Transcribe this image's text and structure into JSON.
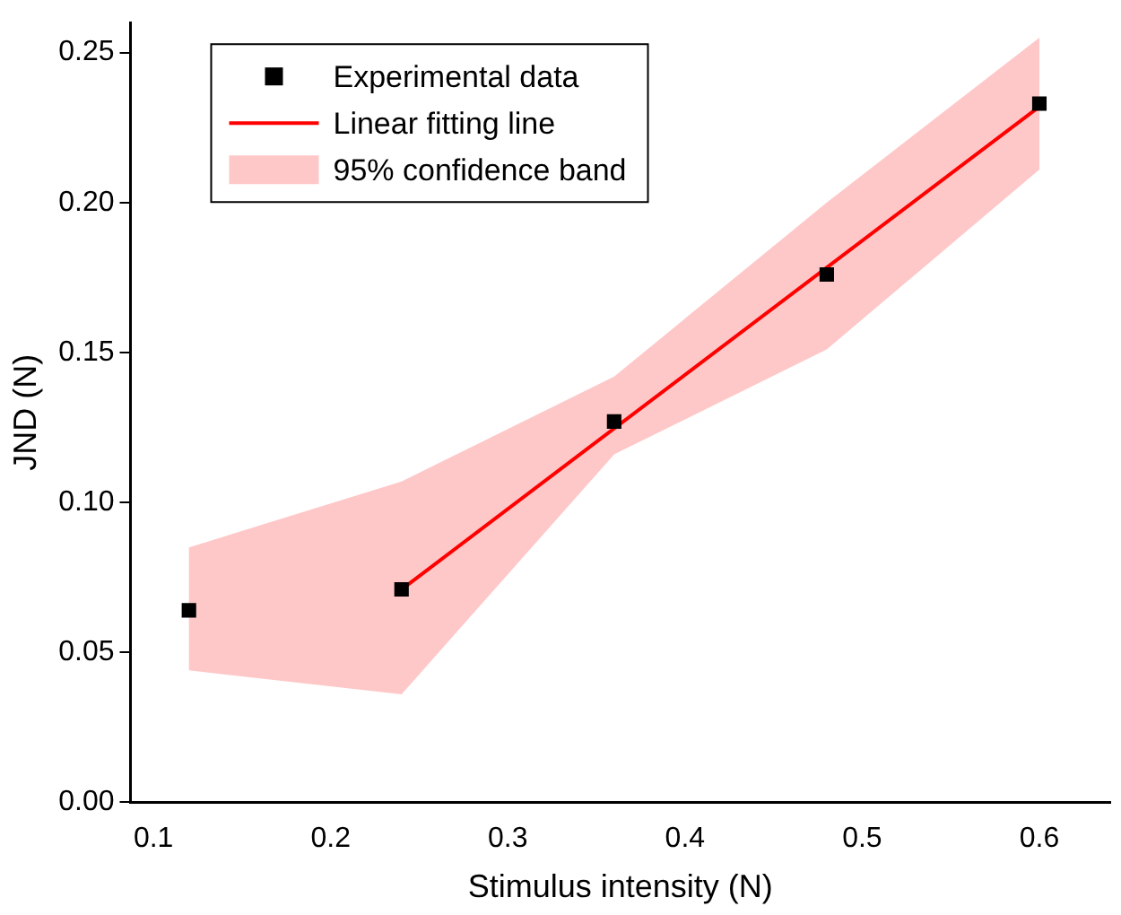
{
  "chart_data": {
    "type": "scatter",
    "xlabel": "Stimulus intensity (N)",
    "ylabel": "JND (N)",
    "xlim": [
      0.087,
      0.64
    ],
    "ylim": [
      0,
      0.26
    ],
    "xticks": [
      0.1,
      0.2,
      0.3,
      0.4,
      0.5,
      0.6
    ],
    "yticks": [
      {
        "value": 0,
        "label": "0.00"
      },
      {
        "value": 0.05,
        "label": "0.05"
      },
      {
        "value": 0.1,
        "label": "0.10"
      },
      {
        "value": 0.15,
        "label": "0.15"
      },
      {
        "value": 0.2,
        "label": "0.20"
      },
      {
        "value": 0.25,
        "label": "0.25"
      }
    ],
    "legend": "top left",
    "grid": false,
    "series": [
      {
        "name": "95% confidence band",
        "type": "area",
        "color": "#ffc8c8",
        "x": [
          0.12,
          0.24,
          0.36,
          0.48,
          0.6
        ],
        "values": [
          null,
          null,
          null,
          null,
          null
        ],
        "lower": [
          0.044,
          0.036,
          0.116,
          0.151,
          0.211
        ],
        "upper": [
          0.085,
          0.107,
          0.142,
          0.2,
          0.255
        ]
      },
      {
        "name": "Linear fitting line",
        "type": "line",
        "color": "#ff0000",
        "x": [
          0.24,
          0.6
        ],
        "values": [
          0.071,
          0.232
        ]
      },
      {
        "name": "Experimental data",
        "type": "scatter",
        "marker": "square",
        "color": "#000000",
        "x": [
          0.12,
          0.24,
          0.36,
          0.48,
          0.6
        ],
        "values": [
          0.064,
          0.071,
          0.127,
          0.176,
          0.233
        ]
      }
    ]
  }
}
